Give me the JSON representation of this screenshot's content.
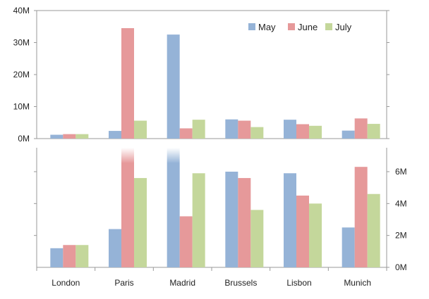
{
  "chart_data": {
    "type": "bar",
    "categories": [
      "London",
      "Paris",
      "Madrid",
      "Brussels",
      "Lisbon",
      "Munich"
    ],
    "series": [
      {
        "name": "May",
        "color": "#95b3d7",
        "values": [
          1.2,
          2.4,
          32.5,
          6.0,
          5.9,
          2.5
        ]
      },
      {
        "name": "June",
        "color": "#e6999a",
        "values": [
          1.4,
          34.5,
          3.2,
          5.6,
          4.5,
          6.3
        ]
      },
      {
        "name": "July",
        "color": "#c4d79b",
        "values": [
          1.4,
          5.6,
          5.9,
          3.6,
          4.0,
          4.6
        ]
      }
    ],
    "legend_position": "top-right",
    "panels": [
      {
        "name": "full-range",
        "ylim": [
          0,
          40
        ],
        "yticks": [
          0,
          10,
          20,
          30,
          40
        ],
        "ytick_labels": [
          "0M",
          "10M",
          "20M",
          "30M",
          "40M"
        ],
        "yaxis_side": "left"
      },
      {
        "name": "zoomed",
        "ylim": [
          0,
          7.5
        ],
        "yticks": [
          0,
          2,
          4,
          6
        ],
        "ytick_labels": [
          "0M",
          "2M",
          "4M",
          "6M"
        ],
        "yaxis_side": "right"
      }
    ],
    "grid": false
  }
}
